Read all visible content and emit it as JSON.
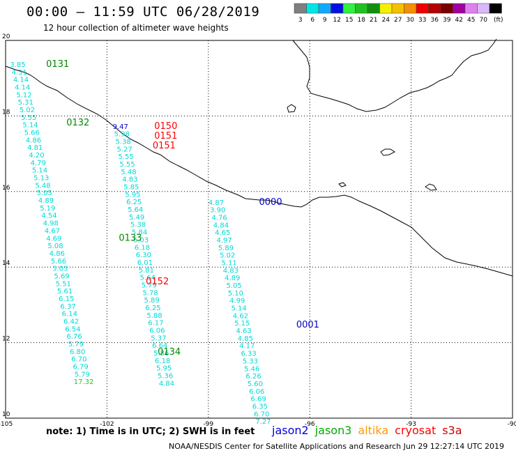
{
  "header": {
    "title": "00:00 – 11:59 UTC 06/28/2019",
    "subtitle": "12 hour collection of altimeter wave heights"
  },
  "colorbar": {
    "labels": [
      "3",
      "6",
      "9",
      "12",
      "15",
      "18",
      "21",
      "24",
      "27",
      "30",
      "33",
      "36",
      "39",
      "42",
      "45",
      "70",
      "(ft)"
    ],
    "colors": [
      "#7f7f7f",
      "#00e5e5",
      "#12a8ff",
      "#0010e0",
      "#30f040",
      "#20c020",
      "#109010",
      "#f5f000",
      "#f5c000",
      "#f59000",
      "#f00000",
      "#b40000",
      "#7a0000",
      "#a000a0",
      "#e080f0",
      "#d8b8f8",
      "#000000"
    ]
  },
  "axes": {
    "x_ticks": [
      -105,
      -102,
      -99,
      -96,
      -93,
      -90
    ],
    "x_tick_labels": [
      "-105",
      "-102",
      "-99",
      "-96",
      "-93",
      "-90"
    ],
    "y_ticks": [
      10,
      12,
      14,
      16,
      18,
      20
    ],
    "y_tick_labels": [
      "10",
      "12",
      "14",
      "16",
      "18",
      "20"
    ]
  },
  "tracks": [
    {
      "sat": "jason3",
      "color": "#00d8d8",
      "start": [
        -104.64,
        19.3
      ],
      "step": [
        0.0465,
        -0.2
      ],
      "values": [
        "3.85",
        "4.31",
        "4.14",
        "4.14",
        "5.12",
        "5.31",
        "5.02",
        "5.55",
        "5.14",
        "5.66",
        "4.86",
        "4.81",
        "4.20",
        "4.79",
        "5.14",
        "5.13",
        "5.48",
        "5.05",
        "4.89",
        "5.19",
        "4.54",
        "4.98",
        "4.67",
        "4.69",
        "5.08",
        "4.86",
        "5.66",
        "5.03",
        "5.69",
        "5.51",
        "5.61",
        "6.15",
        "6.37",
        "6.14",
        "6.42",
        "6.54",
        "6.76",
        "5.79",
        "6.80",
        "6.70",
        "6.79",
        "5.79",
        "17.32"
      ]
    },
    {
      "sat": "cryosat",
      "color": "#00d8d8",
      "start": [
        -101.6,
        17.66
      ],
      "step": [
        0.0402,
        -0.2
      ],
      "values": [
        "9.47",
        "5.98",
        "5.38",
        "5.27",
        "5.55",
        "5.55",
        "5.48",
        "4.83",
        "5.85",
        "5.95",
        "6.25",
        "5.64",
        "5.49",
        "5.38",
        "5.84",
        "6.03",
        "6.18",
        "6.30",
        "6.01",
        "5.81",
        "5.64",
        "5.79",
        "5.78",
        "5.89",
        "6.25",
        "5.88",
        "6.17",
        "6.06",
        "5.37",
        "6.64",
        "5.86",
        "6.18",
        "5.95",
        "5.36",
        "4.84"
      ]
    },
    {
      "sat": "jason2",
      "color": "#00d8d8",
      "start": [
        -98.77,
        15.65
      ],
      "step": [
        0.0481,
        -0.2
      ],
      "values": [
        "4.87",
        "3.90",
        "4.76",
        "4.84",
        "4.65",
        "4.97",
        "5.89",
        "5.02",
        "5.11",
        "4.83",
        "4.89",
        "5.05",
        "5.10",
        "4.99",
        "5.14",
        "4.62",
        "5.15",
        "4.63",
        "4.85",
        "4.17",
        "6.33",
        "5.33",
        "5.46",
        "6.26",
        "5.60",
        "6.06",
        "6.69",
        "6.35",
        "6.70",
        "7.27"
      ]
    }
  ],
  "pass_labels": [
    {
      "text": "0131",
      "color": "#008800",
      "lon": -103.8,
      "lat": 19.3
    },
    {
      "text": "0132",
      "color": "#008800",
      "lon": -103.2,
      "lat": 17.75
    },
    {
      "text": "0150",
      "color": "#ff0000",
      "lon": -100.6,
      "lat": 17.66
    },
    {
      "text": "0151",
      "color": "#ff0000",
      "lon": -100.6,
      "lat": 17.4
    },
    {
      "text": "0151",
      "color": "#ff0000",
      "lon": -100.65,
      "lat": 17.14
    },
    {
      "text": "0000",
      "color": "#0000cc",
      "lon": -97.5,
      "lat": 15.65
    },
    {
      "text": "0133",
      "color": "#008800",
      "lon": -101.65,
      "lat": 14.7
    },
    {
      "text": "0152",
      "color": "#ff0000",
      "lon": -100.85,
      "lat": 13.54
    },
    {
      "text": "0001",
      "color": "#0000cc",
      "lon": -96.4,
      "lat": 12.4
    },
    {
      "text": "0134",
      "color": "#008800",
      "lon": -100.5,
      "lat": 11.68
    }
  ],
  "footer": {
    "note": "note:  1) Time is in UTC;  2) SWH is in feet",
    "credit": "NOAA/NESDIS Center for Satellite Applications and Research     Jun 29 12:27:14 UTC 2019",
    "satellites": [
      {
        "name": "jason2",
        "color": "#0000dd"
      },
      {
        "name": "jason3",
        "color": "#00aa00"
      },
      {
        "name": "altika",
        "color": "#ff9900"
      },
      {
        "name": "cryosat",
        "color": "#ff0000"
      },
      {
        "name": "s3a",
        "color": "#cc0000"
      }
    ]
  }
}
